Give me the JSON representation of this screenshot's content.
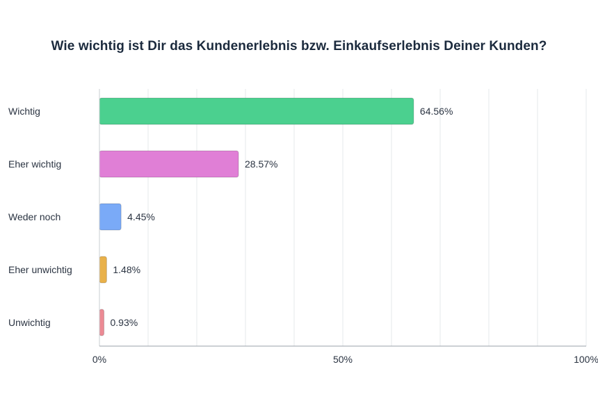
{
  "chart_data": {
    "type": "bar",
    "orientation": "horizontal",
    "title": "Wie wichtig ist Dir das Kundenerlebnis bzw. Einkaufserlebnis Deiner Kunden?",
    "categories": [
      "Wichtig",
      "Eher wichtig",
      "Weder noch",
      "Eher unwichtig",
      "Unwichtig"
    ],
    "values": [
      64.56,
      28.57,
      4.45,
      1.48,
      0.93
    ],
    "value_labels": [
      "64.56%",
      "28.57%",
      "4.45%",
      "1.48%",
      "0.93%"
    ],
    "colors": [
      "#4bd08f",
      "#e07fd6",
      "#7aaaf7",
      "#e9b14a",
      "#ec8a94"
    ],
    "xlim": [
      0,
      100
    ],
    "x_ticks": [
      0,
      50,
      100
    ],
    "x_tick_labels": [
      "0%",
      "50%",
      "100%"
    ],
    "grid_step": 10,
    "grid": true,
    "xlabel": "",
    "ylabel": "",
    "legend": "none"
  }
}
